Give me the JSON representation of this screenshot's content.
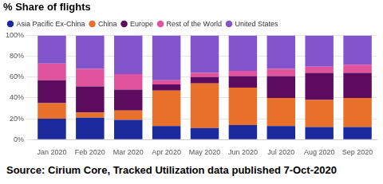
{
  "chart_data": {
    "type": "bar",
    "title": "% Share of flights",
    "source": "Source: Cirium Core, Tracked Utilization data published 7-Oct-2020",
    "stacked": true,
    "legend": "top",
    "grid": true,
    "categories": [
      "Jan 2020",
      "Feb 2020",
      "Mar 2020",
      "Apr 2020",
      "May 2020",
      "Jun 2020",
      "Jul 2020",
      "Aug 2020",
      "Sep 2020"
    ],
    "series": [
      {
        "name": "Asia Pacific Ex-China",
        "color": "#1b2a9c",
        "values": [
          20,
          21,
          19,
          13,
          11,
          14,
          13,
          12,
          12
        ]
      },
      {
        "name": "China",
        "color": "#e8702a",
        "values": [
          15,
          5,
          9,
          34,
          43,
          36,
          27,
          26,
          28
        ]
      },
      {
        "name": "Europe",
        "color": "#5c0b5f",
        "values": [
          22,
          25,
          20,
          6,
          6,
          11,
          21,
          26,
          24
        ]
      },
      {
        "name": "Rest of the World",
        "color": "#e0529c",
        "values": [
          16,
          17,
          15,
          4,
          4,
          5,
          7,
          6,
          8
        ]
      },
      {
        "name": "United States",
        "color": "#8355cc",
        "values": [
          27,
          32,
          37,
          43,
          36,
          34,
          32,
          30,
          28
        ]
      }
    ],
    "ylim": [
      0,
      100
    ],
    "yticks": [
      {
        "value": 0,
        "label": "0%"
      },
      {
        "value": 20,
        "label": "20%"
      },
      {
        "value": 40,
        "label": "40%"
      },
      {
        "value": 60,
        "label": "60%"
      },
      {
        "value": 80,
        "label": "80%"
      },
      {
        "value": 100,
        "label": "100%"
      }
    ]
  }
}
